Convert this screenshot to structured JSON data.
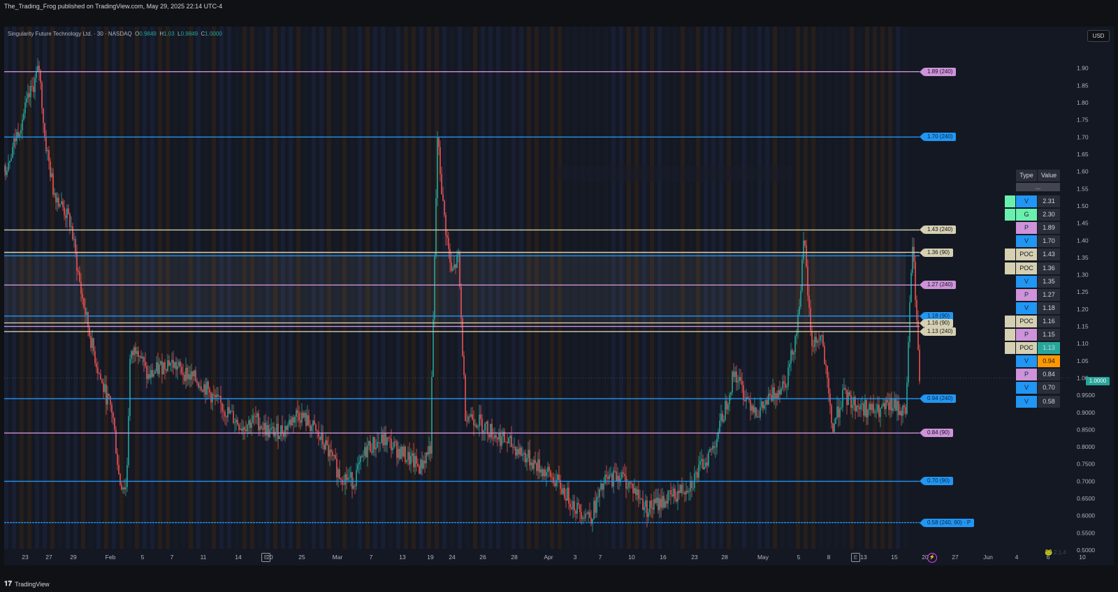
{
  "header": {
    "publish_line": "The_Trading_Frog published on TradingView.com, May 29, 2025 22:14 UTC-4"
  },
  "symbol_line": {
    "name": "Singularity Future Technology Ltd. · 30 · NASDAQ",
    "open_label": "O",
    "open": "0.9849",
    "high_label": "H",
    "high": "1.03",
    "low_label": "L",
    "low": "0.9849",
    "close_label": "C",
    "close": "1.0000"
  },
  "currency_button": "USD",
  "current_price_label": "1.0000",
  "footer": {
    "brand": "TradingView",
    "version": "2.1.4"
  },
  "earnings_marker": "E",
  "colors": {
    "up": "#26a69a",
    "down": "#ef5350",
    "blue_level": "#2196f3",
    "purple_level": "#ce93d8",
    "poc_level": "#d6d0b2",
    "vwap_orange": "#ff9800",
    "green_cell": "#69f0ae"
  },
  "table": {
    "headers": [
      "Type",
      "Value"
    ],
    "placeholder_row": "...",
    "rows": [
      {
        "type": "V",
        "value": "2.31",
        "type_color": "#2196f3",
        "swatch": "#69f0ae",
        "value_bg": "#2a2e39"
      },
      {
        "type": "G",
        "value": "2.30",
        "type_color": "#69f0ae",
        "swatch": "#69f0ae",
        "value_bg": "#2a2e39"
      },
      {
        "type": "P",
        "value": "1.89",
        "type_color": "#ce93d8",
        "swatch": "",
        "value_bg": "#2a2e39"
      },
      {
        "type": "V",
        "value": "1.70",
        "type_color": "#2196f3",
        "swatch": "",
        "value_bg": "#2a2e39"
      },
      {
        "type": "POC",
        "value": "1.43",
        "type_color": "#d6d0b2",
        "swatch": "#d6d0b2",
        "value_bg": "#2a2e39"
      },
      {
        "type": "POC",
        "value": "1.36",
        "type_color": "#d6d0b2",
        "swatch": "#d6d0b2",
        "value_bg": "#2a2e39"
      },
      {
        "type": "V",
        "value": "1.35",
        "type_color": "#2196f3",
        "swatch": "",
        "value_bg": "#2a2e39"
      },
      {
        "type": "P",
        "value": "1.27",
        "type_color": "#ce93d8",
        "swatch": "",
        "value_bg": "#2a2e39"
      },
      {
        "type": "V",
        "value": "1.18",
        "type_color": "#2196f3",
        "swatch": "",
        "value_bg": "#2a2e39"
      },
      {
        "type": "POC",
        "value": "1.16",
        "type_color": "#d6d0b2",
        "swatch": "#d6d0b2",
        "value_bg": "#2a2e39"
      },
      {
        "type": "P",
        "value": "1.15",
        "type_color": "#ce93d8",
        "swatch": "#d6d0b2",
        "value_bg": "#2a2e39"
      },
      {
        "type": "POC",
        "value": "1.13",
        "type_color": "#d6d0b2",
        "swatch": "#d6d0b2",
        "value_bg": "#26a69a"
      },
      {
        "type": "V",
        "value": "0.94",
        "type_color": "#2196f3",
        "swatch": "",
        "value_bg": "#ff9800"
      },
      {
        "type": "P",
        "value": "0.84",
        "type_color": "#ce93d8",
        "swatch": "",
        "value_bg": "#2a2e39"
      },
      {
        "type": "V",
        "value": "0.70",
        "type_color": "#2196f3",
        "swatch": "",
        "value_bg": "#2a2e39"
      },
      {
        "type": "V",
        "value": "0.58",
        "type_color": "#2196f3",
        "swatch": "",
        "value_bg": "#2a2e39"
      }
    ]
  },
  "chart_data": {
    "type": "candlestick",
    "y_axis": {
      "min": 0.5,
      "max": 1.94,
      "ticks": [
        "1.90",
        "1.85",
        "1.80",
        "1.75",
        "1.70",
        "1.65",
        "1.60",
        "1.55",
        "1.50",
        "1.45",
        "1.40",
        "1.35",
        "1.30",
        "1.25",
        "1.20",
        "1.15",
        "1.10",
        "1.05",
        "1.00",
        "0.9500",
        "0.9000",
        "0.8500",
        "0.8000",
        "0.7500",
        "0.7000",
        "0.6500",
        "0.6000",
        "0.5500",
        "0.5000"
      ]
    },
    "x_axis": {
      "ticks": [
        "23",
        "27",
        "29",
        "Feb",
        "5",
        "7",
        "11",
        "14",
        "20",
        "25",
        "Mar",
        "7",
        "13",
        "19",
        "24",
        "26",
        "28",
        "Apr",
        "3",
        "7",
        "10",
        "16",
        "23",
        "28",
        "May",
        "5",
        "8",
        "13",
        "15",
        "20",
        "27",
        "Jun",
        "4",
        "6",
        "10"
      ],
      "tick_index": [
        0,
        34,
        69,
        122,
        168,
        210,
        255,
        305,
        350,
        396,
        447,
        495,
        540,
        580,
        611,
        655,
        700,
        749,
        787,
        823,
        868,
        913,
        958,
        1001,
        1056,
        1107,
        1150,
        1200,
        1244,
        1288,
        1331,
        1378,
        1419,
        1464,
        1513
      ],
      "max_index": 1588
    },
    "levels": [
      {
        "value": 1.89,
        "label": "1.89 (240)",
        "kind": "P"
      },
      {
        "value": 1.7,
        "label": "1.70 (240)",
        "kind": "V"
      },
      {
        "value": 1.43,
        "label": "1.43 (240)",
        "kind": "POC"
      },
      {
        "value": 1.365,
        "label": "1.36 (90)",
        "kind": "POC"
      },
      {
        "value": 1.355,
        "label": "",
        "kind": "V"
      },
      {
        "value": 1.27,
        "label": "1.27 (240)",
        "kind": "P"
      },
      {
        "value": 1.18,
        "label": "1.18 (90)",
        "kind": "V"
      },
      {
        "value": 1.16,
        "label": "1.16 (90)",
        "kind": "POC"
      },
      {
        "value": 1.15,
        "label": "",
        "kind": "P"
      },
      {
        "value": 1.135,
        "label": "1.13 (240)",
        "kind": "POC"
      },
      {
        "value": 0.94,
        "label": "0.94 (240)",
        "kind": "V"
      },
      {
        "value": 0.84,
        "label": "0.84 (90)",
        "kind": "P"
      },
      {
        "value": 0.7,
        "label": "0.70 (90)",
        "kind": "V"
      },
      {
        "value": 0.58,
        "label": "0.58 (240, 90) · P",
        "kind": "V"
      }
    ],
    "last_price": 1.0,
    "price_path": [
      [
        0,
        1.6
      ],
      [
        50,
        1.9
      ],
      [
        58,
        1.7
      ],
      [
        70,
        1.55
      ],
      [
        95,
        1.45
      ],
      [
        110,
        1.25
      ],
      [
        125,
        1.1
      ],
      [
        140,
        0.98
      ],
      [
        155,
        0.9
      ],
      [
        165,
        0.7
      ],
      [
        175,
        0.68
      ],
      [
        180,
        1.05
      ],
      [
        190,
        1.1
      ],
      [
        205,
        1.0
      ],
      [
        235,
        1.05
      ],
      [
        255,
        1.02
      ],
      [
        270,
        1.0
      ],
      [
        285,
        0.98
      ],
      [
        300,
        0.94
      ],
      [
        320,
        0.9
      ],
      [
        340,
        0.86
      ],
      [
        360,
        0.88
      ],
      [
        380,
        0.84
      ],
      [
        400,
        0.85
      ],
      [
        420,
        0.9
      ],
      [
        440,
        0.86
      ],
      [
        460,
        0.8
      ],
      [
        480,
        0.72
      ],
      [
        500,
        0.7
      ],
      [
        520,
        0.8
      ],
      [
        545,
        0.82
      ],
      [
        570,
        0.78
      ],
      [
        595,
        0.74
      ],
      [
        610,
        0.8
      ],
      [
        620,
        1.7
      ],
      [
        628,
        1.5
      ],
      [
        640,
        1.3
      ],
      [
        650,
        1.35
      ],
      [
        660,
        0.9
      ],
      [
        675,
        0.88
      ],
      [
        700,
        0.84
      ],
      [
        730,
        0.8
      ],
      [
        760,
        0.75
      ],
      [
        790,
        0.7
      ],
      [
        820,
        0.62
      ],
      [
        840,
        0.6
      ],
      [
        860,
        0.7
      ],
      [
        880,
        0.72
      ],
      [
        900,
        0.68
      ],
      [
        920,
        0.62
      ],
      [
        940,
        0.64
      ],
      [
        960,
        0.66
      ],
      [
        985,
        0.7
      ],
      [
        1000,
        0.75
      ],
      [
        1015,
        0.8
      ],
      [
        1030,
        0.9
      ],
      [
        1045,
        1.02
      ],
      [
        1060,
        0.95
      ],
      [
        1080,
        0.9
      ],
      [
        1100,
        0.95
      ],
      [
        1120,
        1.0
      ],
      [
        1135,
        1.15
      ],
      [
        1145,
        1.4
      ],
      [
        1155,
        1.1
      ],
      [
        1170,
        1.12
      ],
      [
        1185,
        0.85
      ],
      [
        1200,
        0.95
      ],
      [
        1220,
        0.92
      ],
      [
        1250,
        0.9
      ],
      [
        1270,
        0.92
      ],
      [
        1290,
        0.9
      ],
      [
        1300,
        1.4
      ],
      [
        1310,
        1.0
      ]
    ]
  }
}
